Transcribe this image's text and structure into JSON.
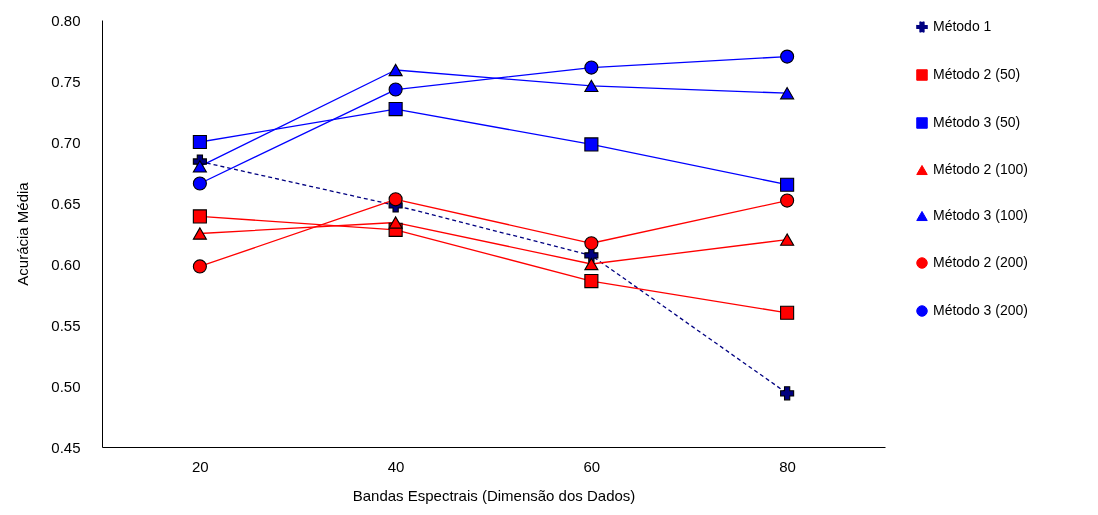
{
  "chart_data": {
    "type": "line",
    "xlabel": "Bandas Espectrais (Dimensão dos Dados)",
    "ylabel": "Acurácia Média",
    "x": [
      20,
      40,
      60,
      80
    ],
    "xlim": [
      10,
      90
    ],
    "xticks": [
      20,
      40,
      60,
      80
    ],
    "ylim": [
      0.45,
      0.8
    ],
    "yticks": [
      {
        "value": 0.45,
        "label": "0.45"
      },
      {
        "value": 0.5,
        "label": "0.50"
      },
      {
        "value": 0.55,
        "label": "0.55"
      },
      {
        "value": 0.6,
        "label": "0.60"
      },
      {
        "value": 0.65,
        "label": "0.65"
      },
      {
        "value": 0.7,
        "label": "0.70"
      },
      {
        "value": 0.75,
        "label": "0.75"
      },
      {
        "value": 0.8,
        "label": "0.80"
      }
    ],
    "grid": false,
    "legend": "right",
    "series": [
      {
        "name": "Método 1",
        "color": "#000080",
        "marker": "cross",
        "line_style": "dashed",
        "values": [
          0.684,
          0.648,
          0.607,
          0.494
        ]
      },
      {
        "name": "Método 2 (50)",
        "color": "#ff0000",
        "marker": "square",
        "line_style": "solid",
        "values": [
          0.639,
          0.628,
          0.586,
          0.56
        ]
      },
      {
        "name": "Método 3 (50)",
        "color": "#0000ff",
        "marker": "square",
        "line_style": "solid",
        "values": [
          0.7,
          0.727,
          0.698,
          0.665
        ]
      },
      {
        "name": "Método 2 (100)",
        "color": "#ff0000",
        "marker": "triangle",
        "line_style": "solid",
        "values": [
          0.625,
          0.634,
          0.6,
          0.62
        ]
      },
      {
        "name": "Método 3 (100)",
        "color": "#0000ff",
        "marker": "triangle",
        "line_style": "solid",
        "values": [
          0.68,
          0.759,
          0.746,
          0.74
        ]
      },
      {
        "name": "Método 2 (200)",
        "color": "#ff0000",
        "marker": "circle",
        "line_style": "solid",
        "values": [
          0.598,
          0.653,
          0.617,
          0.652
        ]
      },
      {
        "name": "Método 3 (200)",
        "color": "#0000ff",
        "marker": "circle",
        "line_style": "solid",
        "values": [
          0.666,
          0.743,
          0.761,
          0.77
        ]
      }
    ]
  }
}
